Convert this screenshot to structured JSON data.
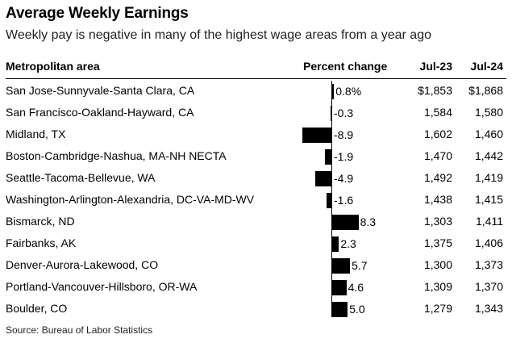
{
  "title": "Average Weekly Earnings",
  "subtitle": "Weekly pay is negative in many of the highest wage areas from a year ago",
  "headers": {
    "area": "Metropolitan area",
    "change": "Percent change",
    "jul23": "Jul-23",
    "jul24": "Jul-24"
  },
  "source": "Source: Bureau of Labor Statistics",
  "rows": [
    {
      "area": "San Jose-Sunnyvale-Santa Clara, CA",
      "change_label": "0.8%",
      "jul23": "$1,853",
      "jul24": "$1,868"
    },
    {
      "area": "San Francisco-Oakland-Hayward, CA",
      "change_label": "-0.3",
      "jul23": "1,584",
      "jul24": "1,580"
    },
    {
      "area": "Midland, TX",
      "change_label": "-8.9",
      "jul23": "1,602",
      "jul24": "1,460"
    },
    {
      "area": "Boston-Cambridge-Nashua, MA-NH NECTA",
      "change_label": "-1.9",
      "jul23": "1,470",
      "jul24": "1,442"
    },
    {
      "area": "Seattle-Tacoma-Bellevue, WA",
      "change_label": "-4.9",
      "jul23": "1,492",
      "jul24": "1,419"
    },
    {
      "area": "Washington-Arlington-Alexandria, DC-VA-MD-WV",
      "change_label": "-1.6",
      "jul23": "1,438",
      "jul24": "1,415"
    },
    {
      "area": "Bismarck, ND",
      "change_label": "8.3",
      "jul23": "1,303",
      "jul24": "1,411"
    },
    {
      "area": "Fairbanks, AK",
      "change_label": "2.3",
      "jul23": "1,375",
      "jul24": "1,406"
    },
    {
      "area": "Denver-Aurora-Lakewood, CO",
      "change_label": "5.7",
      "jul23": "1,300",
      "jul24": "1,373"
    },
    {
      "area": "Portland-Vancouver-Hillsboro, OR-WA",
      "change_label": "4.6",
      "jul23": "1,309",
      "jul24": "1,370"
    },
    {
      "area": "Boulder, CO",
      "change_label": "5.0",
      "jul23": "1,279",
      "jul24": "1,343"
    }
  ],
  "chart_data": {
    "type": "bar",
    "title": "Average Weekly Earnings",
    "subtitle": "Weekly pay is negative in many of the highest wage areas from a year ago",
    "categories": [
      "San Jose-Sunnyvale-Santa Clara, CA",
      "San Francisco-Oakland-Hayward, CA",
      "Midland, TX",
      "Boston-Cambridge-Nashua, MA-NH NECTA",
      "Seattle-Tacoma-Bellevue, WA",
      "Washington-Arlington-Alexandria, DC-VA-MD-WV",
      "Bismarck, ND",
      "Fairbanks, AK",
      "Denver-Aurora-Lakewood, CO",
      "Portland-Vancouver-Hillsboro, OR-WA",
      "Boulder, CO"
    ],
    "series": [
      {
        "name": "Percent change",
        "values": [
          0.8,
          -0.3,
          -8.9,
          -1.9,
          -4.9,
          -1.6,
          8.3,
          2.3,
          5.7,
          4.6,
          5.0
        ]
      },
      {
        "name": "Jul-23",
        "values": [
          1853,
          1584,
          1602,
          1470,
          1492,
          1438,
          1303,
          1375,
          1300,
          1309,
          1279
        ]
      },
      {
        "name": "Jul-24",
        "values": [
          1868,
          1580,
          1460,
          1442,
          1419,
          1415,
          1411,
          1406,
          1373,
          1370,
          1343
        ]
      }
    ],
    "orientation": "horizontal",
    "xlim": [
      -8.9,
      8.3
    ],
    "grid": false,
    "legend": "none",
    "source": "Source: Bureau of Labor Statistics"
  }
}
